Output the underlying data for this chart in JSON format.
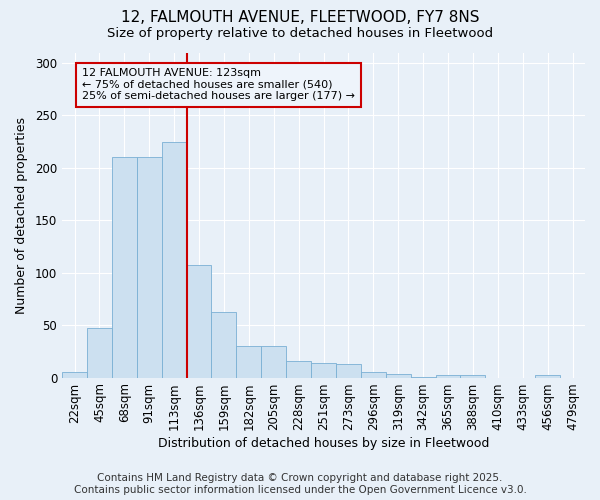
{
  "title": "12, FALMOUTH AVENUE, FLEETWOOD, FY7 8NS",
  "subtitle": "Size of property relative to detached houses in Fleetwood",
  "xlabel": "Distribution of detached houses by size in Fleetwood",
  "ylabel": "Number of detached properties",
  "categories": [
    "22sqm",
    "45sqm",
    "68sqm",
    "91sqm",
    "113sqm",
    "136sqm",
    "159sqm",
    "182sqm",
    "205sqm",
    "228sqm",
    "251sqm",
    "273sqm",
    "296sqm",
    "319sqm",
    "342sqm",
    "365sqm",
    "388sqm",
    "410sqm",
    "433sqm",
    "456sqm",
    "479sqm"
  ],
  "bar_values": [
    5,
    47,
    210,
    210,
    225,
    107,
    63,
    30,
    30,
    16,
    14,
    13,
    5,
    3,
    1,
    2,
    2,
    0,
    0,
    2,
    0
  ],
  "bar_color": "#cce0f0",
  "bar_edge_color": "#7ab0d4",
  "annotation_text": "12 FALMOUTH AVENUE: 123sqm\n← 75% of detached houses are smaller (540)\n25% of semi-detached houses are larger (177) →",
  "annotation_box_facecolor": "#eef4fb",
  "annotation_box_edgecolor": "#cc0000",
  "ylim": [
    0,
    310
  ],
  "yticks": [
    0,
    50,
    100,
    150,
    200,
    250,
    300
  ],
  "bg_color": "#e8f0f8",
  "grid_color": "#ffffff",
  "title_fontsize": 11,
  "subtitle_fontsize": 9.5,
  "xlabel_fontsize": 9,
  "ylabel_fontsize": 9,
  "tick_fontsize": 8.5,
  "annotation_fontsize": 8,
  "footer_fontsize": 7.5,
  "footer_line1": "Contains HM Land Registry data © Crown copyright and database right 2025.",
  "footer_line2": "Contains public sector information licensed under the Open Government Licence v3.0."
}
